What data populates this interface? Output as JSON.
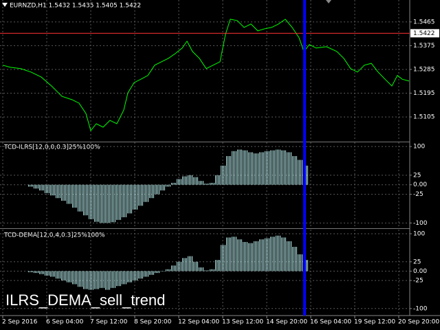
{
  "chart_data": [
    {
      "type": "line",
      "title": "EURNZD,H1 1.5432 1.5435 1.5405 1.5422",
      "current_price": 1.5422,
      "grid": true,
      "xlim": [
        -2,
        296
      ],
      "ylim": [
        1.5014,
        1.5548
      ],
      "yticks": [
        1.5465,
        1.5375,
        1.5285,
        1.5195,
        1.5105
      ],
      "xticks": [
        {
          "value": 0,
          "label": "2 Sep 2016"
        },
        {
          "value": 32,
          "label": "6 Sep 04:00"
        },
        {
          "value": 64,
          "label": "7 Sep 12:00"
        },
        {
          "value": 96,
          "label": "8 Sep 20:00"
        },
        {
          "value": 128,
          "label": "12 Sep 04:00"
        },
        {
          "value": 160,
          "label": "13 Sep 12:00"
        },
        {
          "value": 192,
          "label": "14 Sep 20:00"
        },
        {
          "value": 224,
          "label": "16 Sep 04:00"
        },
        {
          "value": 256,
          "label": "19 Sep 12:00"
        },
        {
          "value": 288,
          "label": "20 Sep 20:00"
        }
      ],
      "series": [
        {
          "color": "#00ff00",
          "x": [
            0,
            5.5,
            13,
            20.5,
            28,
            35.5,
            43,
            50.5,
            55.5,
            60.5,
            64,
            68,
            73,
            78,
            83,
            88,
            91,
            95.5,
            100.5,
            105.5,
            110.5,
            115.5,
            120.5,
            125.5,
            130.5,
            134,
            138,
            143,
            148,
            153,
            158,
            162,
            165.5,
            170.5,
            175.5,
            180.5,
            185.5,
            190.5,
            195.5,
            200.5,
            205.5,
            210.5,
            215.5,
            219,
            223,
            228,
            235.5,
            243,
            248,
            253,
            258,
            263,
            268,
            273,
            278,
            283,
            287,
            290.5,
            295.5
          ],
          "values": [
            1.5301,
            1.5293,
            1.5288,
            1.5275,
            1.5256,
            1.5222,
            1.5183,
            1.517,
            1.5157,
            1.5118,
            1.5053,
            1.5079,
            1.5066,
            1.5092,
            1.5079,
            1.5131,
            1.5196,
            1.5235,
            1.5248,
            1.5262,
            1.5301,
            1.5314,
            1.5327,
            1.5345,
            1.5366,
            1.5392,
            1.5353,
            1.5327,
            1.5288,
            1.5301,
            1.5314,
            1.5418,
            1.5475,
            1.547,
            1.5444,
            1.5457,
            1.5431,
            1.5439,
            1.5444,
            1.5457,
            1.5475,
            1.5444,
            1.5405,
            1.5353,
            1.5379,
            1.5366,
            1.5371,
            1.5353,
            1.5327,
            1.5288,
            1.5275,
            1.5301,
            1.5308,
            1.5275,
            1.5248,
            1.5222,
            1.5262,
            1.5248,
            1.5241
          ]
        }
      ]
    },
    {
      "type": "bar",
      "title": "TCD-ILRS[12,0,0,0.3]25%100%",
      "color": "#b4e6e6",
      "grid": true,
      "xlim": [
        -2,
        296
      ],
      "ylim": [
        -112,
        111
      ],
      "yticks": [
        100,
        25,
        {
          "value": 0,
          "label": "0.00"
        },
        -25,
        -100
      ],
      "x": [
        20,
        24,
        28,
        32,
        36,
        40,
        44,
        48,
        52,
        56,
        60,
        64,
        68,
        72,
        76,
        80,
        84,
        88,
        92,
        96,
        100,
        104,
        108,
        112,
        116,
        120,
        124,
        128,
        132,
        136,
        140,
        144,
        148,
        152,
        156,
        160,
        164,
        168,
        172,
        176,
        180,
        184,
        188,
        192,
        196,
        200,
        204,
        208,
        212,
        216,
        220
      ],
      "values": [
        -5,
        -10,
        -15,
        -22,
        -28,
        -35,
        -42,
        -50,
        -60,
        -70,
        -80,
        -90,
        -97,
        -100,
        -100,
        -98,
        -92,
        -85,
        -75,
        -65,
        -55,
        -45,
        -35,
        -25,
        -15,
        -5,
        5,
        15,
        22,
        25,
        20,
        10,
        3,
        5,
        25,
        50,
        75,
        88,
        92,
        90,
        85,
        82,
        85,
        88,
        90,
        92,
        90,
        85,
        75,
        65,
        50
      ]
    },
    {
      "type": "bar",
      "title": "TCD-DEMA[12,0,4,0.3]25%100%",
      "color": "#b4e6e6",
      "grid": true,
      "xlim": [
        -2,
        296
      ],
      "ylim": [
        -117,
        111
      ],
      "yticks": [
        100,
        25,
        {
          "value": 0,
          "label": "0.00"
        },
        -25,
        -100
      ],
      "x": [
        20,
        24,
        28,
        32,
        36,
        40,
        44,
        48,
        52,
        56,
        60,
        64,
        68,
        72,
        76,
        80,
        84,
        88,
        92,
        96,
        100,
        104,
        108,
        112,
        116,
        120,
        124,
        128,
        132,
        136,
        140,
        144,
        148,
        152,
        156,
        160,
        164,
        168,
        172,
        176,
        180,
        184,
        188,
        192,
        196,
        200,
        204,
        208,
        212,
        216,
        220
      ],
      "values": [
        -3,
        -5,
        -8,
        -12,
        -15,
        -20,
        -25,
        -30,
        -35,
        -42,
        -48,
        -50,
        -48,
        -45,
        -50,
        -45,
        -40,
        -35,
        -30,
        -25,
        -20,
        -15,
        -10,
        -5,
        0,
        5,
        15,
        25,
        35,
        40,
        25,
        10,
        2,
        5,
        30,
        70,
        90,
        92,
        85,
        78,
        75,
        80,
        85,
        88,
        92,
        95,
        90,
        80,
        65,
        45,
        30
      ]
    }
  ],
  "annotation": "ILRS_DEMA_sell_trend"
}
